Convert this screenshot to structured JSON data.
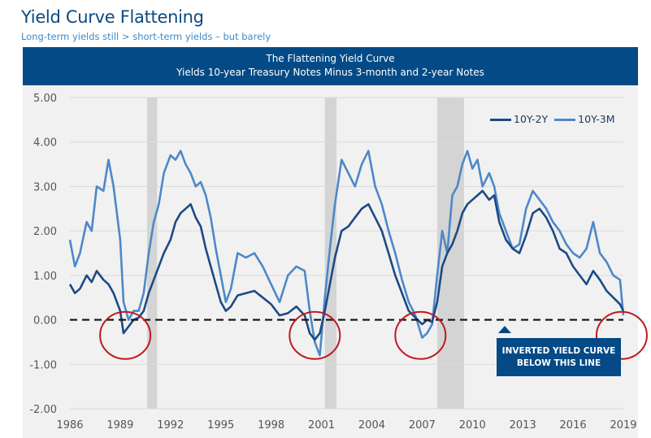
{
  "header": {
    "title": "Yield Curve Flattening",
    "subtitle": "Long-term yields still > short-term yields – but barely",
    "band_line1": "The Flattening Yield Curve",
    "band_line2": "Yields 10-year Treasury Notes Minus 3-month and 2-year Notes"
  },
  "callout": {
    "line1": "INVERTED YIELD CURVE",
    "line2": "BELOW THIS LINE"
  },
  "colors": {
    "series_10y2y": "#1c4a85",
    "series_10y3m": "#4d88c8",
    "band": "#034a86",
    "recession": "#d4d4d4",
    "circle": "#c0191e"
  },
  "chart_data": {
    "type": "line",
    "title": "The Flattening Yield Curve",
    "subtitle": "Yields 10-year Treasury Notes Minus 3-month and 2-year Notes",
    "xlabel": "",
    "ylabel": "",
    "xlim": [
      1986,
      2019
    ],
    "ylim": [
      -2,
      5
    ],
    "grid": true,
    "legend_position": "top-right",
    "x_ticks": [
      "1986",
      "1989",
      "1992",
      "1995",
      "1998",
      "2001",
      "2004",
      "2007",
      "2010",
      "2013",
      "2016",
      "2019"
    ],
    "y_ticks": [
      "5.00",
      "4.00",
      "3.00",
      "2.00",
      "1.00",
      "0.00",
      "-1.00",
      "-2.00"
    ],
    "reference_line": {
      "y": 0,
      "style": "dashed",
      "label": "INVERTED YIELD CURVE BELOW THIS LINE"
    },
    "recessions": [
      [
        1990.6,
        1991.2
      ],
      [
        2001.2,
        2001.9
      ],
      [
        2007.9,
        2009.5
      ]
    ],
    "highlight_circles": [
      1989.3,
      2000.6,
      2006.9,
      2018.9
    ],
    "series": [
      {
        "name": "10Y-2Y",
        "x": [
          1986.0,
          1986.3,
          1986.6,
          1987.0,
          1987.3,
          1987.6,
          1988.0,
          1988.3,
          1988.6,
          1989.0,
          1989.2,
          1989.5,
          1989.8,
          1990.1,
          1990.4,
          1990.7,
          1991.0,
          1991.3,
          1991.6,
          1992.0,
          1992.3,
          1992.6,
          1992.9,
          1993.2,
          1993.5,
          1993.8,
          1994.1,
          1994.4,
          1994.7,
          1995.0,
          1995.3,
          1995.6,
          1996.0,
          1996.5,
          1997.0,
          1997.5,
          1998.0,
          1998.5,
          1999.0,
          1999.5,
          2000.0,
          2000.3,
          2000.6,
          2000.9,
          2001.2,
          2001.5,
          2001.8,
          2002.2,
          2002.6,
          2003.0,
          2003.4,
          2003.8,
          2004.2,
          2004.6,
          2005.0,
          2005.4,
          2005.8,
          2006.2,
          2006.6,
          2007.0,
          2007.3,
          2007.6,
          2007.9,
          2008.2,
          2008.5,
          2008.8,
          2009.1,
          2009.4,
          2009.7,
          2010.0,
          2010.3,
          2010.6,
          2011.0,
          2011.3,
          2011.6,
          2012.0,
          2012.4,
          2012.8,
          2013.2,
          2013.6,
          2014.0,
          2014.4,
          2014.8,
          2015.2,
          2015.6,
          2016.0,
          2016.4,
          2016.8,
          2017.2,
          2017.6,
          2018.0,
          2018.4,
          2018.8,
          2019.0
        ],
        "values": [
          0.8,
          0.6,
          0.7,
          1.0,
          0.85,
          1.1,
          0.9,
          0.8,
          0.6,
          0.2,
          -0.3,
          -0.15,
          0.0,
          0.05,
          0.2,
          0.6,
          0.9,
          1.2,
          1.5,
          1.8,
          2.2,
          2.4,
          2.5,
          2.6,
          2.3,
          2.1,
          1.6,
          1.2,
          0.8,
          0.4,
          0.2,
          0.3,
          0.55,
          0.6,
          0.65,
          0.5,
          0.35,
          0.1,
          0.15,
          0.3,
          0.1,
          -0.3,
          -0.45,
          -0.3,
          0.2,
          0.8,
          1.4,
          2.0,
          2.1,
          2.3,
          2.5,
          2.6,
          2.3,
          2.0,
          1.5,
          1.0,
          0.6,
          0.2,
          0.05,
          -0.1,
          0.0,
          -0.05,
          0.4,
          1.2,
          1.5,
          1.7,
          2.0,
          2.4,
          2.6,
          2.7,
          2.8,
          2.9,
          2.7,
          2.8,
          2.2,
          1.8,
          1.6,
          1.5,
          1.9,
          2.4,
          2.5,
          2.3,
          2.0,
          1.6,
          1.5,
          1.2,
          1.0,
          0.8,
          1.1,
          0.9,
          0.65,
          0.5,
          0.35,
          0.2
        ]
      },
      {
        "name": "10Y-3M",
        "x": [
          1986.0,
          1986.3,
          1986.6,
          1987.0,
          1987.3,
          1987.6,
          1988.0,
          1988.3,
          1988.6,
          1989.0,
          1989.2,
          1989.5,
          1989.8,
          1990.1,
          1990.4,
          1990.7,
          1991.0,
          1991.3,
          1991.6,
          1992.0,
          1992.3,
          1992.6,
          1992.9,
          1993.2,
          1993.5,
          1993.8,
          1994.1,
          1994.4,
          1994.7,
          1995.0,
          1995.3,
          1995.6,
          1996.0,
          1996.5,
          1997.0,
          1997.5,
          1998.0,
          1998.5,
          1999.0,
          1999.5,
          2000.0,
          2000.3,
          2000.6,
          2000.9,
          2001.2,
          2001.5,
          2001.8,
          2002.2,
          2002.6,
          2003.0,
          2003.4,
          2003.8,
          2004.2,
          2004.6,
          2005.0,
          2005.4,
          2005.8,
          2006.2,
          2006.6,
          2007.0,
          2007.3,
          2007.6,
          2007.9,
          2008.2,
          2008.5,
          2008.8,
          2009.1,
          2009.4,
          2009.7,
          2010.0,
          2010.3,
          2010.6,
          2011.0,
          2011.3,
          2011.6,
          2012.0,
          2012.4,
          2012.8,
          2013.2,
          2013.6,
          2014.0,
          2014.4,
          2014.8,
          2015.2,
          2015.6,
          2016.0,
          2016.4,
          2016.8,
          2017.2,
          2017.6,
          2018.0,
          2018.4,
          2018.8,
          2019.0
        ],
        "values": [
          1.8,
          1.2,
          1.5,
          2.2,
          2.0,
          3.0,
          2.9,
          3.6,
          3.0,
          1.8,
          0.4,
          0.0,
          0.2,
          0.2,
          0.6,
          1.5,
          2.2,
          2.6,
          3.3,
          3.7,
          3.6,
          3.8,
          3.5,
          3.3,
          3.0,
          3.1,
          2.8,
          2.3,
          1.6,
          1.0,
          0.4,
          0.7,
          1.5,
          1.4,
          1.5,
          1.2,
          0.8,
          0.4,
          1.0,
          1.2,
          1.1,
          0.2,
          -0.5,
          -0.8,
          0.5,
          1.6,
          2.6,
          3.6,
          3.3,
          3.0,
          3.5,
          3.8,
          3.0,
          2.6,
          2.0,
          1.5,
          0.9,
          0.4,
          0.1,
          -0.4,
          -0.3,
          -0.1,
          1.0,
          2.0,
          1.5,
          2.8,
          3.0,
          3.5,
          3.8,
          3.4,
          3.6,
          3.0,
          3.3,
          3.0,
          2.4,
          2.0,
          1.6,
          1.7,
          2.5,
          2.9,
          2.7,
          2.5,
          2.2,
          2.0,
          1.7,
          1.5,
          1.4,
          1.6,
          2.2,
          1.5,
          1.3,
          1.0,
          0.9,
          0.1
        ]
      }
    ]
  }
}
